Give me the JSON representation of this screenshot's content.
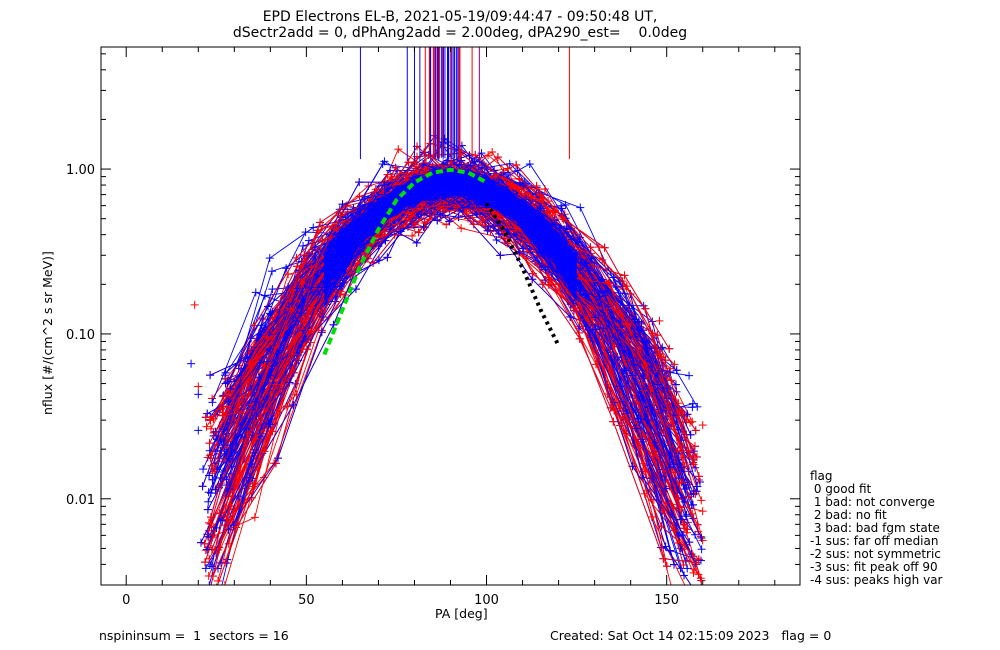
{
  "header": {
    "title_line1": "EPD Electrons EL-B, 2021-05-19/09:44:47 - 09:50:48 UT,",
    "title_line2": "dSectr2add = 0, dPhAng2add = 2.00deg, dPA290_est=    0.0deg"
  },
  "legend": {
    "title": "flag",
    "items": [
      " 0 good fit",
      " 1 bad: not converge",
      " 2 bad: no fit",
      " 3 bad: bad fgm state",
      "-1 sus: far off median",
      "-2 sus: not symmetric",
      "-3 sus: fit peak off 90",
      "-4 sus: peaks high var"
    ]
  },
  "footer": {
    "left": "nspininsum =  1  sectors = 16",
    "right": "Created: Sat Oct 14 02:15:09 2023   flag = 0"
  },
  "colors": {
    "series_a": "#ff0000",
    "series_b": "#0000ff",
    "fit_green": "#00dd00",
    "fit_black": "#000000",
    "marker_purple": "#800080"
  },
  "chart_data": {
    "type": "line",
    "xlabel": "PA [deg]",
    "ylabel": "nflux [#/(cm^2 s sr MeV)]",
    "xlim": [
      -7,
      187
    ],
    "ylim": [
      0.003,
      5.5
    ],
    "yscale": "log",
    "x_ticks": [
      0,
      50,
      100,
      150
    ],
    "x_tick_labels": [
      "0",
      "50",
      "100",
      "150"
    ],
    "y_ticks": [
      0.01,
      0.1,
      1.0
    ],
    "y_tick_labels": [
      "0.01",
      "0.10",
      "1.00"
    ],
    "legend_position": "right-outside",
    "envelope_model": {
      "description_free": true,
      "peak_pa": 90,
      "peak_value": 0.82,
      "halfwidth_core": 22,
      "floor_value": 0.0045
    },
    "series": [
      {
        "name": "",
        "color": "#ff0000",
        "style": "line+plus",
        "sample_pa": [
          25,
          35,
          45,
          55,
          65,
          75,
          85,
          95,
          105,
          115,
          125,
          135,
          145,
          155
        ],
        "sample_values": [
          0.006,
          0.008,
          0.012,
          0.05,
          0.25,
          0.65,
          0.85,
          0.82,
          0.6,
          0.2,
          0.05,
          0.01,
          0.006,
          0.005
        ]
      },
      {
        "name": "",
        "color": "#0000ff",
        "style": "line+plus",
        "sample_pa": [
          25,
          35,
          45,
          55,
          65,
          75,
          85,
          95,
          105,
          115,
          125,
          135,
          145,
          155
        ],
        "sample_values": [
          0.007,
          0.009,
          0.015,
          0.06,
          0.3,
          0.7,
          0.88,
          0.85,
          0.62,
          0.22,
          0.06,
          0.012,
          0.007,
          0.005
        ]
      }
    ],
    "fits": [
      {
        "name": "",
        "color": "#00dd00",
        "style": "dashed",
        "pa": [
          55,
          60,
          65,
          70,
          75,
          80,
          85,
          90,
          95,
          100
        ],
        "values": [
          0.075,
          0.14,
          0.26,
          0.43,
          0.65,
          0.83,
          0.95,
          0.99,
          0.95,
          0.83
        ]
      },
      {
        "name": "",
        "color": "#000000",
        "style": "dotted",
        "pa": [
          100,
          105,
          110,
          115,
          120
        ],
        "values": [
          0.62,
          0.42,
          0.25,
          0.14,
          0.085
        ]
      }
    ],
    "vertical_markers": [
      {
        "pa": 65,
        "top": 5.5,
        "bottom": 1.15,
        "color": "#0000ff"
      },
      {
        "pa": 78,
        "top": 5.5,
        "bottom": 1.12,
        "color": "#0000ff"
      },
      {
        "pa": 80,
        "top": 5.5,
        "bottom": 1.12,
        "color": "#0000ff"
      },
      {
        "pa": 81.5,
        "top": 5.5,
        "bottom": 1.12,
        "color": "#0000ff"
      },
      {
        "pa": 83,
        "top": 5.5,
        "bottom": 1.15,
        "color": "#ff0000"
      },
      {
        "pa": 86,
        "top": 5.5,
        "bottom": 1.18,
        "color": "#ff0000"
      },
      {
        "pa": 96,
        "top": 5.5,
        "bottom": 1.18,
        "color": "#ff0000"
      },
      {
        "pa": 98,
        "top": 5.5,
        "bottom": 1.12,
        "color": "#800080"
      },
      {
        "pa": 123,
        "top": 5.5,
        "bottom": 1.15,
        "color": "#ff0000"
      }
    ],
    "outliers": [
      {
        "pa": 18,
        "value": 0.066,
        "color": "#0000ff"
      },
      {
        "pa": 20,
        "value": 0.043,
        "color": "#0000ff"
      },
      {
        "pa": 20,
        "value": 0.026,
        "color": "#0000ff"
      },
      {
        "pa": 19,
        "value": 0.15,
        "color": "#ff0000"
      },
      {
        "pa": 20,
        "value": 0.048,
        "color": "#ff0000"
      },
      {
        "pa": 39,
        "value": 0.068,
        "color": "#0000ff"
      },
      {
        "pa": 39,
        "value": 0.096,
        "color": "#ff0000"
      },
      {
        "pa": 148,
        "value": 0.12,
        "color": "#ff0000"
      },
      {
        "pa": 148,
        "value": 0.075,
        "color": "#ff0000"
      },
      {
        "pa": 143,
        "value": 0.115,
        "color": "#0000ff"
      },
      {
        "pa": 160,
        "value": 0.028,
        "color": "#ff0000"
      },
      {
        "pa": 159,
        "value": 0.013,
        "color": "#ff0000"
      },
      {
        "pa": 154,
        "value": 0.0155,
        "color": "#0000ff"
      }
    ]
  }
}
